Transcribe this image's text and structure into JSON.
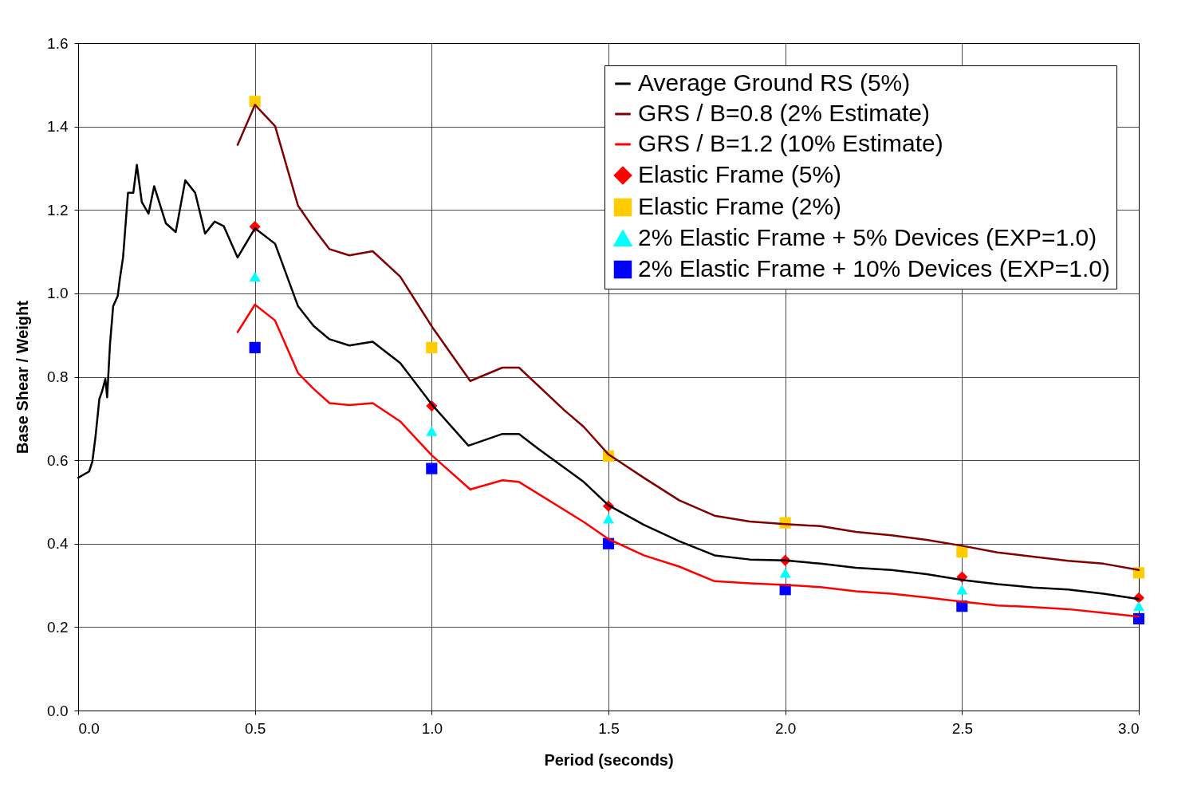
{
  "chart_data": {
    "type": "line",
    "xlabel": "Period (seconds)",
    "ylabel": "Base Shear / Weight",
    "xlim": [
      0,
      3
    ],
    "ylim": [
      0,
      1.6
    ],
    "xticks": [
      {
        "value": 0,
        "label": "0.0"
      },
      0.5,
      {
        "value": 1,
        "label": "1.0"
      },
      1.5,
      {
        "value": 2,
        "label": "2.0"
      },
      2.5,
      {
        "value": 3,
        "label": "3.0"
      }
    ],
    "yticks": [
      {
        "value": 0,
        "label": "0.0"
      },
      0.2,
      0.4,
      0.6,
      0.8,
      {
        "value": 1,
        "label": "1.0"
      },
      1.2,
      1.4,
      1.6
    ],
    "grid": true,
    "legend": "top right",
    "series": [
      {
        "name": "Average Ground RS (5%)",
        "color": "#000000",
        "x": [
          0,
          0.031,
          0.04,
          0.049,
          0.06,
          0.068,
          0.077,
          0.082,
          0.09,
          0.099,
          0.112,
          0.118,
          0.127,
          0.141,
          0.156,
          0.166,
          0.18,
          0.199,
          0.215,
          0.248,
          0.276,
          0.303,
          0.331,
          0.359,
          0.386,
          0.412,
          0.451,
          0.5,
          0.557,
          0.622,
          0.666,
          0.711,
          0.767,
          0.833,
          0.911,
          1.0,
          1.104,
          1.2,
          1.247,
          1.299,
          1.43,
          1.5,
          1.6,
          1.7,
          1.8,
          1.9,
          2.0,
          2.1,
          2.2,
          2.3,
          2.4,
          2.5,
          2.6,
          2.7,
          2.8,
          2.9,
          3.0
        ],
        "values": [
          0.558,
          0.573,
          0.596,
          0.656,
          0.747,
          0.766,
          0.795,
          0.751,
          0.877,
          0.969,
          0.994,
          1.035,
          1.086,
          1.241,
          1.241,
          1.308,
          1.219,
          1.191,
          1.257,
          1.168,
          1.147,
          1.271,
          1.241,
          1.143,
          1.172,
          1.161,
          1.086,
          1.156,
          1.119,
          0.969,
          0.922,
          0.89,
          0.875,
          0.884,
          0.833,
          0.734,
          0.635,
          0.663,
          0.663,
          0.629,
          0.548,
          0.492,
          0.445,
          0.406,
          0.372,
          0.362,
          0.36,
          0.352,
          0.342,
          0.337,
          0.327,
          0.313,
          0.303,
          0.295,
          0.29,
          0.28,
          0.267
        ]
      },
      {
        "name": "GRS / B=0.8 (2% Estimate)",
        "color": "#800000",
        "x": [
          0.451,
          0.5,
          0.557,
          0.622,
          0.666,
          0.711,
          0.767,
          0.833,
          0.911,
          1.0,
          1.109,
          1.2,
          1.247,
          1.375,
          1.43,
          1.5,
          1.6,
          1.7,
          1.8,
          1.9,
          2.0,
          2.1,
          2.2,
          2.3,
          2.4,
          2.5,
          2.6,
          2.7,
          2.8,
          2.9,
          3.0
        ],
        "values": [
          1.356,
          1.452,
          1.401,
          1.21,
          1.156,
          1.106,
          1.091,
          1.101,
          1.04,
          0.921,
          0.79,
          0.822,
          0.822,
          0.72,
          0.68,
          0.614,
          0.558,
          0.504,
          0.467,
          0.453,
          0.447,
          0.442,
          0.428,
          0.42,
          0.409,
          0.395,
          0.379,
          0.369,
          0.359,
          0.352,
          0.337
        ]
      },
      {
        "name": "GRS / B=1.2 (10% Estimate)",
        "color": "#ff0000",
        "x": [
          0.451,
          0.5,
          0.557,
          0.622,
          0.666,
          0.711,
          0.767,
          0.833,
          0.911,
          1.0,
          1.109,
          1.2,
          1.247,
          1.43,
          1.5,
          1.6,
          1.7,
          1.8,
          1.9,
          2.0,
          2.1,
          2.2,
          2.3,
          2.4,
          2.5,
          2.6,
          2.7,
          2.8,
          2.9,
          3.0
        ],
        "values": [
          0.907,
          0.973,
          0.935,
          0.809,
          0.771,
          0.737,
          0.732,
          0.737,
          0.693,
          0.612,
          0.53,
          0.552,
          0.548,
          0.452,
          0.411,
          0.372,
          0.345,
          0.31,
          0.305,
          0.301,
          0.296,
          0.286,
          0.28,
          0.271,
          0.261,
          0.252,
          0.248,
          0.243,
          0.234,
          0.225
        ]
      },
      {
        "type": "scatter",
        "name": "Elastic Frame (5%)",
        "color": "#ff0000",
        "marker": "diamond",
        "x": [
          0.5,
          1.0,
          1.5,
          2.0,
          2.5,
          3.0
        ],
        "values": [
          1.16,
          0.73,
          0.49,
          0.36,
          0.32,
          0.27
        ]
      },
      {
        "type": "scatter",
        "name": "Elastic Frame (2%)",
        "color": "#ffcc00",
        "marker": "square",
        "x": [
          0.5,
          1.0,
          1.5,
          2.0,
          2.5,
          3.0
        ],
        "values": [
          1.46,
          0.87,
          0.61,
          0.45,
          0.38,
          0.33
        ]
      },
      {
        "type": "scatter",
        "name": "2% Elastic Frame + 5% Devices (EXP=1.0)",
        "color": "#00ffff",
        "marker": "triangle",
        "x": [
          0.5,
          1.0,
          1.5,
          2.0,
          2.5,
          3.0
        ],
        "values": [
          1.04,
          0.67,
          0.46,
          0.33,
          0.29,
          0.25
        ]
      },
      {
        "type": "scatter",
        "name": "2% Elastic Frame + 10% Devices (EXP=1.0)",
        "color": "#0000ff",
        "marker": "square",
        "x": [
          0.5,
          1.0,
          1.5,
          2.0,
          2.5,
          3.0
        ],
        "values": [
          0.87,
          0.58,
          0.4,
          0.29,
          0.25,
          0.22
        ]
      }
    ]
  }
}
